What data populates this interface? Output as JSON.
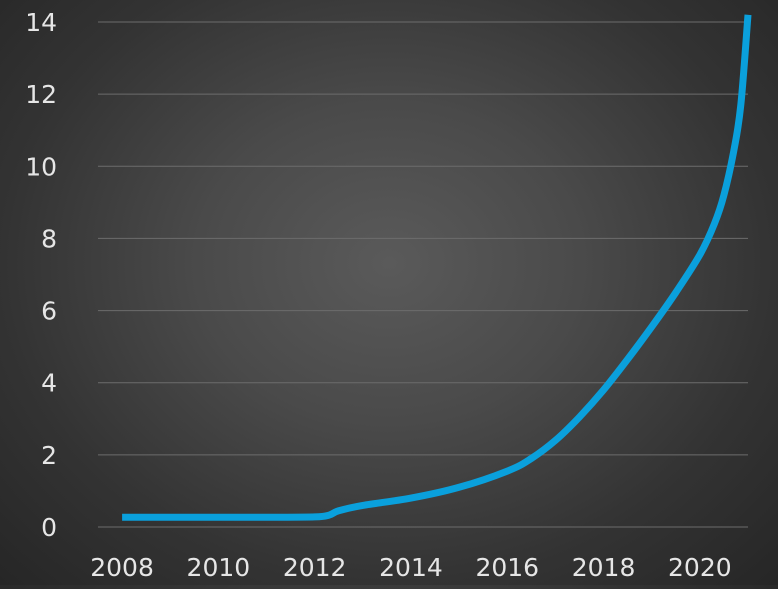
{
  "chart_data": {
    "type": "line",
    "title": "",
    "xlabel": "",
    "ylabel": "",
    "xlim": [
      2007.5,
      2021.0
    ],
    "ylim": [
      0,
      14
    ],
    "x_ticks": [
      "2008",
      "2010",
      "2012",
      "2014",
      "2016",
      "2018",
      "2020"
    ],
    "y_ticks": [
      "0",
      "2",
      "4",
      "6",
      "8",
      "10",
      "12",
      "14"
    ],
    "grid": true,
    "legend": "none",
    "series": [
      {
        "color": "#0aa0dc",
        "x": [
          2008,
          2009,
          2010,
          2011,
          2012,
          2012.3,
          2012.5,
          2013,
          2014,
          2015,
          2016,
          2016.5,
          2017,
          2017.5,
          2018,
          2018.5,
          2019,
          2019.5,
          2020,
          2020.3,
          2020.5,
          2020.7,
          2020.85,
          2021.0
        ],
        "y": [
          0.27,
          0.27,
          0.27,
          0.27,
          0.28,
          0.33,
          0.45,
          0.6,
          0.8,
          1.1,
          1.55,
          1.9,
          2.4,
          3.05,
          3.8,
          4.65,
          5.55,
          6.5,
          7.55,
          8.4,
          9.2,
          10.4,
          11.7,
          14.2
        ]
      }
    ]
  }
}
